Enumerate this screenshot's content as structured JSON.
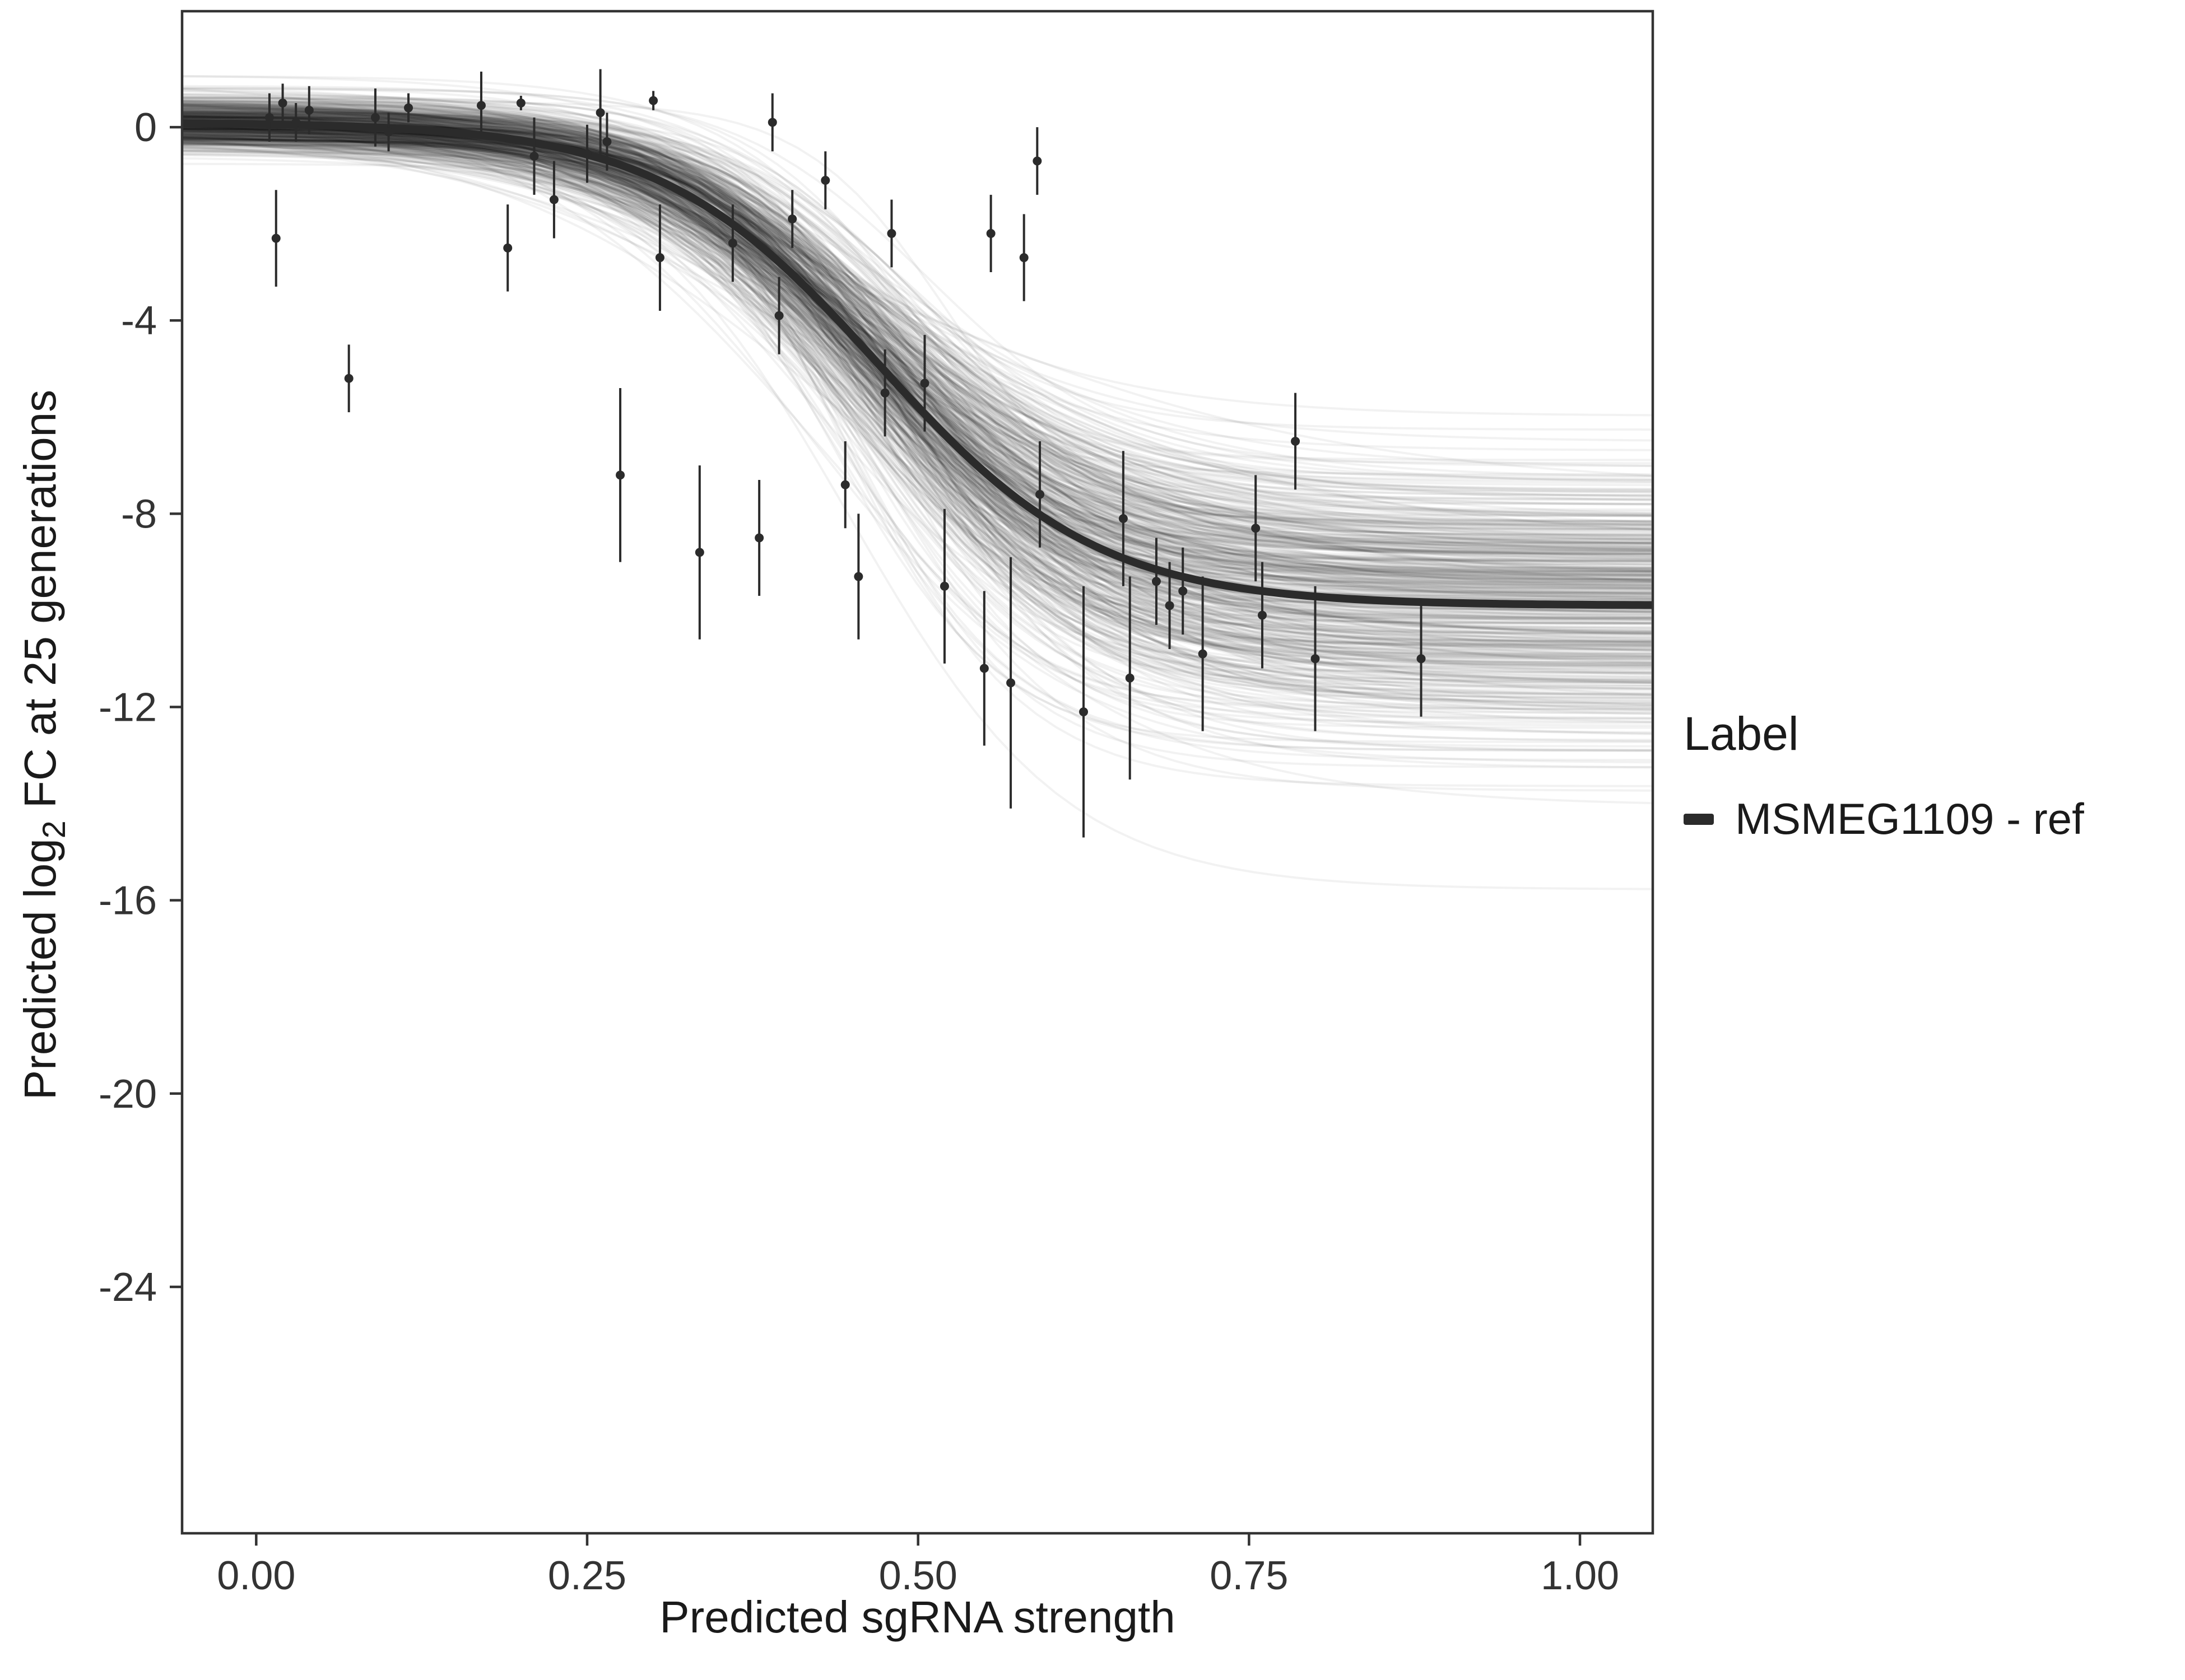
{
  "page": {
    "background": "#ffffff"
  },
  "colors": {
    "axis": "#333333",
    "text": "#1a1a1a",
    "point": "#2b2b2b"
  },
  "chart_data": {
    "type": "scatter",
    "title": "",
    "xlabel": "Predicted sgRNA strength",
    "ylabel": "Predicted log2 FC at 25 generations",
    "ylabel_parts": {
      "prefix": "Predicted  log",
      "sub": "2",
      "suffix": " FC at 25 generations"
    },
    "xlim": [
      -0.056,
      1.055
    ],
    "ylim": [
      -29.1,
      2.4
    ],
    "xticks": [
      0,
      0.25,
      0.5,
      0.75,
      1
    ],
    "xtick_labels": [
      "0.00",
      "0.25",
      "0.50",
      "0.75",
      "1.00"
    ],
    "yticks": [
      0,
      -4,
      -8,
      -12,
      -16,
      -20,
      -24
    ],
    "ytick_labels": [
      "0",
      "-4",
      "-8",
      "-12",
      "-16",
      "-20",
      "-24"
    ],
    "grid": "off",
    "legend": {
      "title": "Label",
      "position": "right",
      "entries": [
        {
          "label": "MSMEG1109 - ref",
          "color": "#2b2b2b"
        }
      ]
    },
    "fit_curve": {
      "shape": "sigmoid",
      "upper": 0.1,
      "lower": -9.9,
      "x0": 0.47,
      "k": 12,
      "color": "#2b2b2b",
      "stroke_width": 14
    },
    "uncertainty_band": {
      "n_curves": 500,
      "upper_sd": 0.3,
      "lower_sd": 1.4,
      "x0_sd": 0.022,
      "k_sd": 2.2,
      "color": "rgba(0,0,0,0.05)",
      "stroke_width": 4
    },
    "point_style": {
      "color": "#2b2b2b",
      "radius": 8,
      "errorbar_width": 4
    },
    "points": [
      [
        0.01,
        0.2,
        0.5
      ],
      [
        0.015,
        -2.3,
        1.0
      ],
      [
        0.02,
        0.5,
        0.4
      ],
      [
        0.03,
        0.1,
        0.4
      ],
      [
        0.04,
        0.35,
        0.5
      ],
      [
        0.07,
        -5.2,
        0.7
      ],
      [
        0.09,
        0.2,
        0.6
      ],
      [
        0.1,
        -0.1,
        0.4
      ],
      [
        0.115,
        0.4,
        0.3
      ],
      [
        0.17,
        0.45,
        0.7
      ],
      [
        0.19,
        -2.5,
        0.9
      ],
      [
        0.2,
        0.5,
        0.15
      ],
      [
        0.21,
        -0.6,
        0.8
      ],
      [
        0.225,
        -1.5,
        0.8
      ],
      [
        0.25,
        -0.55,
        0.6
      ],
      [
        0.26,
        0.3,
        0.9
      ],
      [
        0.265,
        -0.3,
        0.6
      ],
      [
        0.275,
        -7.2,
        1.8
      ],
      [
        0.3,
        0.55,
        0.2
      ],
      [
        0.305,
        -2.7,
        1.1
      ],
      [
        0.335,
        -8.8,
        1.8
      ],
      [
        0.36,
        -2.4,
        0.8
      ],
      [
        0.38,
        -8.5,
        1.2
      ],
      [
        0.39,
        0.1,
        0.6
      ],
      [
        0.395,
        -3.9,
        0.8
      ],
      [
        0.405,
        -1.9,
        0.6
      ],
      [
        0.43,
        -1.1,
        0.6
      ],
      [
        0.445,
        -7.4,
        0.9
      ],
      [
        0.455,
        -9.3,
        1.3
      ],
      [
        0.475,
        -5.5,
        0.9
      ],
      [
        0.48,
        -2.2,
        0.7
      ],
      [
        0.505,
        -5.3,
        1.0
      ],
      [
        0.52,
        -9.5,
        1.6
      ],
      [
        0.55,
        -11.2,
        1.6
      ],
      [
        0.555,
        -2.2,
        0.8
      ],
      [
        0.57,
        -11.5,
        2.6
      ],
      [
        0.58,
        -2.7,
        0.9
      ],
      [
        0.59,
        -0.7,
        0.7
      ],
      [
        0.592,
        -7.6,
        1.1
      ],
      [
        0.625,
        -12.1,
        2.6
      ],
      [
        0.655,
        -8.1,
        1.4
      ],
      [
        0.66,
        -11.4,
        2.1
      ],
      [
        0.68,
        -9.4,
        0.9
      ],
      [
        0.69,
        -9.9,
        0.9
      ],
      [
        0.7,
        -9.6,
        0.9
      ],
      [
        0.715,
        -10.9,
        1.6
      ],
      [
        0.755,
        -8.3,
        1.1
      ],
      [
        0.76,
        -10.1,
        1.1
      ],
      [
        0.785,
        -6.5,
        1.0
      ],
      [
        0.8,
        -11.0,
        1.5
      ],
      [
        0.88,
        -11.0,
        1.2
      ]
    ]
  }
}
